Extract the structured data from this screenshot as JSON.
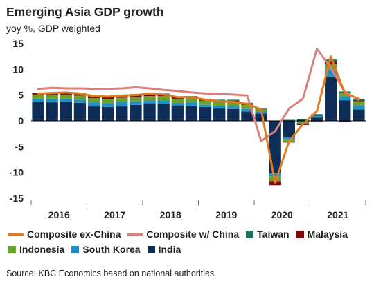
{
  "title": "Emerging Asia GDP growth",
  "subtitle": "yoy %, GDP weighted",
  "source": "Source: KBC Economics based on national authorities",
  "colors": {
    "india": "#0e2d57",
    "south_korea": "#1f8fc7",
    "indonesia": "#6aa12c",
    "malaysia": "#7b0c0c",
    "taiwan": "#19735e",
    "composite_ex_china": "#e07b22",
    "composite_w_china": "#da7f7b",
    "axis": "#000000",
    "text": "#222222"
  },
  "legend": [
    {
      "label": "Composite ex-China",
      "kind": "line",
      "color": "#e07b22"
    },
    {
      "label": "Composite w/ China",
      "kind": "line",
      "color": "#da7f7b"
    },
    {
      "label": "Taiwan",
      "kind": "box",
      "color": "#19735e"
    },
    {
      "label": "Malaysia",
      "kind": "box",
      "color": "#7b0c0c"
    },
    {
      "label": "Indonesia",
      "kind": "box",
      "color": "#6aa12c"
    },
    {
      "label": "South Korea",
      "kind": "box",
      "color": "#1f8fc7"
    },
    {
      "label": "India",
      "kind": "box",
      "color": "#0e2d57"
    }
  ],
  "chart_data": {
    "type": "bar",
    "stacked": true,
    "ylim": [
      -15,
      15
    ],
    "yticks": [
      -15,
      -10,
      -5,
      0,
      5,
      10,
      15
    ],
    "year_labels": [
      "2016",
      "2017",
      "2018",
      "2019",
      "2020",
      "2021"
    ],
    "quarters": [
      "2016Q1",
      "2016Q2",
      "2016Q3",
      "2016Q4",
      "2017Q1",
      "2017Q2",
      "2017Q3",
      "2017Q4",
      "2018Q1",
      "2018Q2",
      "2018Q3",
      "2018Q4",
      "2019Q1",
      "2019Q2",
      "2019Q3",
      "2019Q4",
      "2020Q1",
      "2020Q2",
      "2020Q3",
      "2020Q4",
      "2021Q1",
      "2021Q2",
      "2021Q3",
      "2021Q4"
    ],
    "series": [
      {
        "name": "India",
        "values": [
          3.7,
          3.6,
          3.7,
          3.5,
          2.8,
          2.7,
          2.8,
          3.1,
          3.4,
          3.3,
          3.0,
          2.9,
          2.7,
          2.4,
          2.3,
          1.8,
          1.4,
          -10.2,
          -3.2,
          0.2,
          0.6,
          8.6,
          4.0,
          2.2
        ]
      },
      {
        "name": "South Korea",
        "values": [
          0.6,
          0.7,
          0.6,
          0.6,
          0.8,
          0.7,
          0.9,
          0.7,
          0.6,
          0.7,
          0.5,
          0.7,
          0.4,
          0.5,
          0.5,
          0.5,
          0.4,
          -0.6,
          -0.3,
          -0.2,
          0.3,
          1.2,
          0.8,
          0.8
        ]
      },
      {
        "name": "Indonesia",
        "values": [
          0.8,
          0.8,
          0.8,
          0.8,
          0.8,
          0.8,
          0.8,
          0.8,
          0.8,
          0.8,
          0.8,
          0.8,
          0.8,
          0.8,
          0.8,
          0.8,
          0.5,
          -0.9,
          -0.6,
          -0.4,
          -0.1,
          1.2,
          0.6,
          0.8
        ]
      },
      {
        "name": "Malaysia",
        "values": [
          0.3,
          0.3,
          0.3,
          0.3,
          0.4,
          0.4,
          0.4,
          0.4,
          0.3,
          0.3,
          0.3,
          0.3,
          0.3,
          0.3,
          0.3,
          0.2,
          0.0,
          -0.8,
          -0.1,
          -0.2,
          -0.1,
          0.5,
          -0.2,
          0.2
        ]
      },
      {
        "name": "Taiwan",
        "values": [
          0.0,
          0.1,
          0.2,
          0.2,
          0.2,
          0.1,
          0.2,
          0.2,
          0.2,
          0.2,
          0.1,
          0.1,
          0.1,
          0.1,
          0.2,
          0.2,
          0.1,
          0.0,
          0.2,
          0.2,
          0.4,
          0.4,
          0.3,
          0.3
        ]
      },
      {
        "name": "Composite ex-China",
        "type": "line",
        "values": [
          5.3,
          5.4,
          5.5,
          5.3,
          4.8,
          4.7,
          4.9,
          5.0,
          5.3,
          5.1,
          4.6,
          4.6,
          4.1,
          3.8,
          3.7,
          3.3,
          2.2,
          -12.0,
          -4.0,
          -0.6,
          1.9,
          12.5,
          5.3,
          4.3
        ]
      },
      {
        "name": "Composite w/ China",
        "type": "line",
        "values": [
          6.2,
          6.4,
          6.3,
          6.3,
          6.2,
          6.2,
          6.3,
          6.5,
          6.3,
          6.0,
          5.8,
          5.5,
          5.3,
          5.2,
          5.1,
          4.9,
          -3.9,
          -2.0,
          2.4,
          4.3,
          14.0,
          10.3,
          5.6,
          4.1
        ]
      }
    ]
  }
}
